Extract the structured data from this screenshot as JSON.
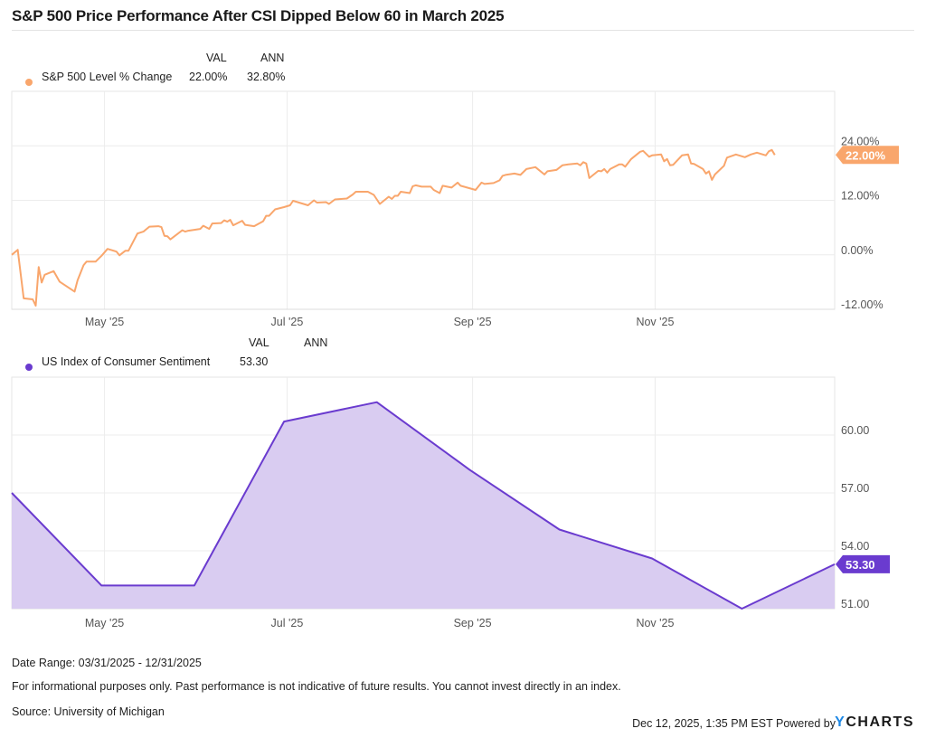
{
  "title": "S&P 500 Price Performance After CSI Dipped Below 60 in March 2025",
  "legend_top": {
    "col_val": "VAL",
    "col_ann": "ANN",
    "series": "S&P 500 Level % Change",
    "val": "22.00%",
    "ann": "32.80%"
  },
  "legend_bottom": {
    "col_val": "VAL",
    "col_ann": "ANN",
    "series": "US Index of Consumer Sentiment",
    "val": "53.30"
  },
  "footer": {
    "date_range": "Date Range: 03/31/2025 - 12/31/2025",
    "disclaimer": "For informational purposes only. Past performance is not indicative of future results. You cannot invest directly in an index.",
    "source": "Source: University of Michigan",
    "timestamp": "Dec 12, 2025, 1:35 PM EST Powered by",
    "logo_y": "Y",
    "logo_rest": "CHARTS"
  },
  "colors": {
    "sp500": "#F9A66C",
    "csi_line": "#6A3BCF",
    "csi_fill": "#D9CCF1",
    "grid": "#ececec"
  },
  "chart_data": [
    {
      "type": "line",
      "series": [
        {
          "name": "S&P 500 Level % Change",
          "last_label": "22.00%",
          "points": [
            [
              "2025-03-31",
              0.0
            ],
            [
              "2025-04-02",
              1.1
            ],
            [
              "2025-04-04",
              -9.6
            ],
            [
              "2025-04-07",
              -9.8
            ],
            [
              "2025-04-08",
              -11.2
            ],
            [
              "2025-04-09",
              -2.7
            ],
            [
              "2025-04-10",
              -6.1
            ],
            [
              "2025-04-11",
              -4.4
            ],
            [
              "2025-04-14",
              -3.6
            ],
            [
              "2025-04-16",
              -5.9
            ],
            [
              "2025-04-21",
              -8.1
            ],
            [
              "2025-04-22",
              -5.6
            ],
            [
              "2025-04-24",
              -2.3
            ],
            [
              "2025-04-25",
              -1.5
            ],
            [
              "2025-04-28",
              -1.5
            ],
            [
              "2025-04-30",
              -0.2
            ],
            [
              "2025-05-02",
              1.3
            ],
            [
              "2025-05-05",
              0.7
            ],
            [
              "2025-05-06",
              -0.1
            ],
            [
              "2025-05-08",
              0.9
            ],
            [
              "2025-05-09",
              0.9
            ],
            [
              "2025-05-12",
              4.7
            ],
            [
              "2025-05-14",
              5.1
            ],
            [
              "2025-05-16",
              6.2
            ],
            [
              "2025-05-19",
              6.3
            ],
            [
              "2025-05-20",
              6.1
            ],
            [
              "2025-05-21",
              4.2
            ],
            [
              "2025-05-22",
              4.1
            ],
            [
              "2025-05-23",
              3.4
            ],
            [
              "2025-05-27",
              5.4
            ],
            [
              "2025-05-28",
              5.1
            ],
            [
              "2025-05-29",
              5.3
            ],
            [
              "2025-06-02",
              5.7
            ],
            [
              "2025-06-03",
              6.4
            ],
            [
              "2025-06-05",
              5.7
            ],
            [
              "2025-06-06",
              6.9
            ],
            [
              "2025-06-09",
              7.0
            ],
            [
              "2025-06-10",
              7.6
            ],
            [
              "2025-06-11",
              7.3
            ],
            [
              "2025-06-12",
              7.7
            ],
            [
              "2025-06-13",
              6.5
            ],
            [
              "2025-06-16",
              7.5
            ],
            [
              "2025-06-17",
              6.6
            ],
            [
              "2025-06-20",
              6.3
            ],
            [
              "2025-06-23",
              7.4
            ],
            [
              "2025-06-24",
              8.6
            ],
            [
              "2025-06-25",
              8.6
            ],
            [
              "2025-06-27",
              10.0
            ],
            [
              "2025-06-30",
              10.5
            ],
            [
              "2025-07-02",
              10.9
            ],
            [
              "2025-07-03",
              11.9
            ],
            [
              "2025-07-08",
              10.9
            ],
            [
              "2025-07-10",
              12.0
            ],
            [
              "2025-07-11",
              11.5
            ],
            [
              "2025-07-14",
              11.6
            ],
            [
              "2025-07-15",
              11.2
            ],
            [
              "2025-07-17",
              12.2
            ],
            [
              "2025-07-21",
              12.4
            ],
            [
              "2025-07-23",
              13.3
            ],
            [
              "2025-07-24",
              13.9
            ],
            [
              "2025-07-28",
              13.9
            ],
            [
              "2025-07-30",
              13.2
            ],
            [
              "2025-08-01",
              11.2
            ],
            [
              "2025-08-04",
              12.8
            ],
            [
              "2025-08-05",
              12.3
            ],
            [
              "2025-08-06",
              13.0
            ],
            [
              "2025-08-07",
              13.0
            ],
            [
              "2025-08-08",
              13.9
            ],
            [
              "2025-08-11",
              13.6
            ],
            [
              "2025-08-12",
              15.1
            ],
            [
              "2025-08-13",
              15.3
            ],
            [
              "2025-08-15",
              15.0
            ],
            [
              "2025-08-18",
              15.0
            ],
            [
              "2025-08-19",
              14.3
            ],
            [
              "2025-08-21",
              13.6
            ],
            [
              "2025-08-22",
              15.2
            ],
            [
              "2025-08-25",
              14.8
            ],
            [
              "2025-08-27",
              15.9
            ],
            [
              "2025-08-28",
              15.2
            ],
            [
              "2025-09-02",
              14.3
            ],
            [
              "2025-09-04",
              15.9
            ],
            [
              "2025-09-05",
              15.6
            ],
            [
              "2025-09-08",
              15.8
            ],
            [
              "2025-09-10",
              16.4
            ],
            [
              "2025-09-11",
              17.4
            ],
            [
              "2025-09-12",
              17.6
            ],
            [
              "2025-09-15",
              17.9
            ],
            [
              "2025-09-17",
              17.6
            ],
            [
              "2025-09-19",
              18.9
            ],
            [
              "2025-09-22",
              19.3
            ],
            [
              "2025-09-25",
              17.7
            ],
            [
              "2025-09-26",
              18.4
            ],
            [
              "2025-09-29",
              18.7
            ],
            [
              "2025-10-01",
              19.7
            ],
            [
              "2025-10-03",
              19.9
            ],
            [
              "2025-10-06",
              20.1
            ],
            [
              "2025-10-07",
              19.7
            ],
            [
              "2025-10-08",
              20.4
            ],
            [
              "2025-10-09",
              20.1
            ],
            [
              "2025-10-10",
              16.9
            ],
            [
              "2025-10-13",
              18.5
            ],
            [
              "2025-10-14",
              18.4
            ],
            [
              "2025-10-15",
              18.9
            ],
            [
              "2025-10-16",
              18.1
            ],
            [
              "2025-10-17",
              18.9
            ],
            [
              "2025-10-20",
              19.9
            ],
            [
              "2025-10-21",
              19.9
            ],
            [
              "2025-10-22",
              19.4
            ],
            [
              "2025-10-24",
              21.1
            ],
            [
              "2025-10-27",
              22.7
            ],
            [
              "2025-10-28",
              22.9
            ],
            [
              "2025-10-30",
              21.6
            ],
            [
              "2025-10-31",
              21.9
            ],
            [
              "2025-11-03",
              22.1
            ],
            [
              "2025-11-04",
              20.6
            ],
            [
              "2025-11-05",
              21.1
            ],
            [
              "2025-11-06",
              19.7
            ],
            [
              "2025-11-07",
              19.8
            ],
            [
              "2025-11-10",
              21.9
            ],
            [
              "2025-11-12",
              22.1
            ],
            [
              "2025-11-13",
              20.1
            ],
            [
              "2025-11-14",
              20.0
            ],
            [
              "2025-11-17",
              18.9
            ],
            [
              "2025-11-18",
              17.9
            ],
            [
              "2025-11-19",
              18.4
            ],
            [
              "2025-11-20",
              16.5
            ],
            [
              "2025-11-21",
              17.7
            ],
            [
              "2025-11-24",
              19.6
            ],
            [
              "2025-11-25",
              21.4
            ],
            [
              "2025-11-28",
              22.1
            ],
            [
              "2025-12-01",
              21.5
            ],
            [
              "2025-12-03",
              22.1
            ],
            [
              "2025-12-05",
              22.5
            ],
            [
              "2025-12-08",
              21.9
            ],
            [
              "2025-12-09",
              22.8
            ],
            [
              "2025-12-10",
              23.1
            ],
            [
              "2025-12-11",
              22.0
            ]
          ]
        }
      ],
      "x_range": [
        "2025-03-31",
        "2025-12-31"
      ],
      "x_ticks": [
        [
          "2025-05-01",
          "May '25"
        ],
        [
          "2025-07-01",
          "Jul '25"
        ],
        [
          "2025-09-01",
          "Sep '25"
        ],
        [
          "2025-11-01",
          "Nov '25"
        ]
      ],
      "ylim": [
        -12,
        36
      ],
      "y_ticks": [
        [
          24,
          "24.00%"
        ],
        [
          12,
          "12.00%"
        ],
        [
          0,
          "0.00%"
        ],
        [
          -12,
          "-12.00%"
        ]
      ],
      "grid": true,
      "y_axis_side": "right"
    },
    {
      "type": "area",
      "series": [
        {
          "name": "US Index of Consumer Sentiment",
          "last_label": "53.30",
          "points": [
            [
              "2025-03-31",
              57.0
            ],
            [
              "2025-04-30",
              52.2
            ],
            [
              "2025-05-31",
              52.2
            ],
            [
              "2025-06-30",
              60.7
            ],
            [
              "2025-07-31",
              61.7
            ],
            [
              "2025-08-31",
              58.2
            ],
            [
              "2025-09-30",
              55.1
            ],
            [
              "2025-10-31",
              53.6
            ],
            [
              "2025-11-30",
              51.0
            ],
            [
              "2025-12-31",
              53.3
            ]
          ]
        }
      ],
      "x_range": [
        "2025-03-31",
        "2025-12-31"
      ],
      "x_ticks": [
        [
          "2025-05-01",
          "May '25"
        ],
        [
          "2025-07-01",
          "Jul '25"
        ],
        [
          "2025-09-01",
          "Sep '25"
        ],
        [
          "2025-11-01",
          "Nov '25"
        ]
      ],
      "ylim": [
        51,
        63
      ],
      "y_ticks": [
        [
          60,
          "60.00"
        ],
        [
          57,
          "57.00"
        ],
        [
          54,
          "54.00"
        ],
        [
          51,
          "51.00"
        ]
      ],
      "grid": true,
      "y_axis_side": "right"
    }
  ]
}
